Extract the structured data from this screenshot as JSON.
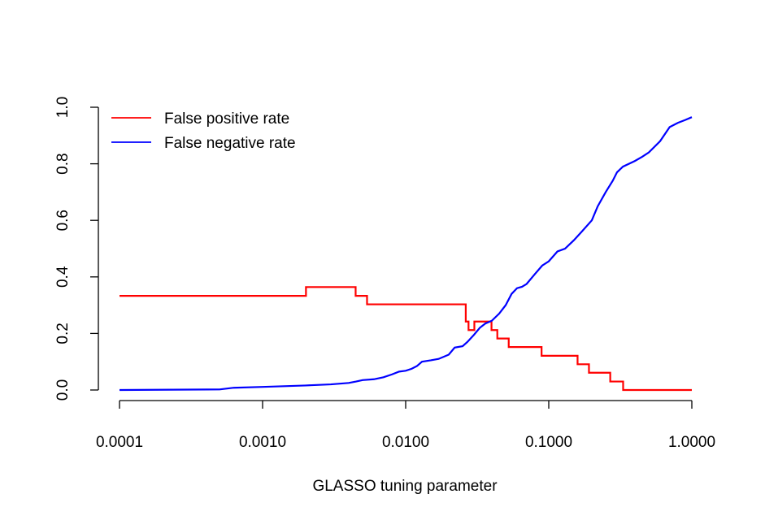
{
  "chart_data": {
    "type": "line",
    "title": "",
    "xlabel": "GLASSO tuning parameter",
    "ylabel": "",
    "xscale": "log",
    "xlim": [
      0.0001,
      1.0
    ],
    "ylim": [
      0.0,
      1.0
    ],
    "x_ticks": [
      0.0001,
      0.001,
      0.01,
      0.1,
      1.0
    ],
    "x_tick_labels": [
      "0.0001",
      "0.0010",
      "0.0100",
      "0.1000",
      "1.0000"
    ],
    "y_ticks": [
      0.0,
      0.2,
      0.4,
      0.6,
      0.8,
      1.0
    ],
    "y_tick_labels": [
      "0.0",
      "0.2",
      "0.4",
      "0.6",
      "0.8",
      "1.0"
    ],
    "grid": false,
    "legend_position": "top-left",
    "series": [
      {
        "name": "False positive rate",
        "color": "#ff0000",
        "x": [
          0.0001,
          0.00201,
          0.00201,
          0.00447,
          0.00447,
          0.00537,
          0.00537,
          0.0263,
          0.0263,
          0.0275,
          0.0275,
          0.0302,
          0.0302,
          0.0398,
          0.0398,
          0.0437,
          0.0437,
          0.0525,
          0.0525,
          0.0891,
          0.0891,
          0.159,
          0.159,
          0.191,
          0.191,
          0.269,
          0.269,
          0.331,
          0.331,
          1.0
        ],
        "y": [
          0.333,
          0.333,
          0.364,
          0.364,
          0.333,
          0.333,
          0.303,
          0.303,
          0.242,
          0.242,
          0.212,
          0.212,
          0.242,
          0.242,
          0.212,
          0.212,
          0.182,
          0.182,
          0.152,
          0.152,
          0.121,
          0.121,
          0.091,
          0.091,
          0.061,
          0.061,
          0.03,
          0.03,
          0.0,
          0.0
        ]
      },
      {
        "name": "False negative rate",
        "color": "#0000ff",
        "x": [
          0.0001,
          0.0005,
          0.00063,
          0.001,
          0.002,
          0.003,
          0.004,
          0.0045,
          0.005,
          0.006,
          0.007,
          0.008,
          0.009,
          0.01,
          0.011,
          0.012,
          0.013,
          0.015,
          0.017,
          0.02,
          0.022,
          0.025,
          0.027,
          0.03,
          0.033,
          0.036,
          0.04,
          0.045,
          0.05,
          0.055,
          0.06,
          0.065,
          0.07,
          0.08,
          0.09,
          0.1,
          0.115,
          0.13,
          0.15,
          0.17,
          0.2,
          0.22,
          0.25,
          0.28,
          0.3,
          0.33,
          0.4,
          0.45,
          0.5,
          0.6,
          0.7,
          0.8,
          0.9,
          1.0
        ],
        "y": [
          0.0,
          0.002,
          0.008,
          0.011,
          0.016,
          0.02,
          0.025,
          0.03,
          0.035,
          0.038,
          0.045,
          0.055,
          0.065,
          0.068,
          0.075,
          0.085,
          0.1,
          0.105,
          0.11,
          0.125,
          0.15,
          0.155,
          0.17,
          0.195,
          0.22,
          0.235,
          0.245,
          0.27,
          0.3,
          0.34,
          0.36,
          0.365,
          0.375,
          0.41,
          0.44,
          0.455,
          0.49,
          0.5,
          0.53,
          0.56,
          0.6,
          0.65,
          0.7,
          0.74,
          0.77,
          0.79,
          0.81,
          0.825,
          0.84,
          0.88,
          0.93,
          0.945,
          0.955,
          0.965
        ]
      }
    ]
  }
}
